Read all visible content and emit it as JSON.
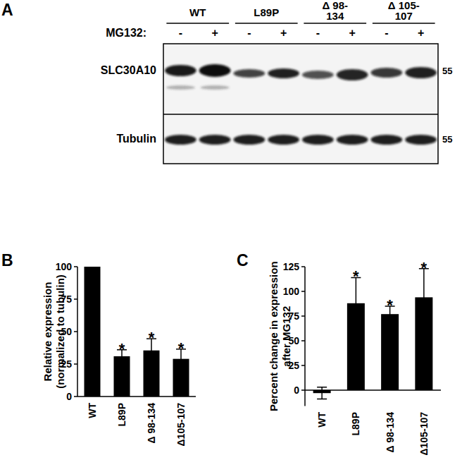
{
  "panel_labels": [
    "A",
    "B",
    "C"
  ],
  "blot": {
    "groups": [
      {
        "lines": [
          "WT"
        ]
      },
      {
        "lines": [
          "L89P"
        ]
      },
      {
        "lines": [
          "Δ 98-",
          "134"
        ]
      },
      {
        "lines": [
          "Δ 105-",
          "107"
        ]
      }
    ],
    "treatment_label": "MG132:",
    "treatment_signs": [
      "-",
      "+"
    ],
    "rows": [
      "SLC30A10",
      "Tubulin"
    ],
    "size_markers": [
      55,
      55
    ]
  },
  "chart_data": [
    {
      "type": "bar",
      "ylabel": [
        "Relative expression",
        "(normalized to tubulin)"
      ],
      "categories": [
        "WT",
        "L89P",
        "Δ 98-134",
        "Δ105-107"
      ],
      "values": [
        100,
        31,
        35.5,
        29
      ],
      "errors": [
        0.5,
        5,
        9,
        7.5
      ],
      "annotations": [
        null,
        "*",
        "*",
        "*"
      ],
      "color": "#000000",
      "ylim": [
        0,
        100
      ],
      "yticks": [
        0,
        25,
        50,
        75,
        100
      ]
    },
    {
      "type": "bar",
      "ylabel": [
        "Percent change in expression",
        "after MG132"
      ],
      "categories": [
        "WT",
        "L89P",
        "Δ 98-134",
        "Δ105-107"
      ],
      "values": [
        -3,
        88,
        77,
        94
      ],
      "errors": [
        6,
        26,
        8,
        29
      ],
      "annotations": [
        null,
        "*",
        "*",
        "*"
      ],
      "color": "#000000",
      "ylim": [
        -16,
        125
      ],
      "yticks": [
        0,
        25,
        50,
        75,
        100,
        125
      ]
    }
  ]
}
